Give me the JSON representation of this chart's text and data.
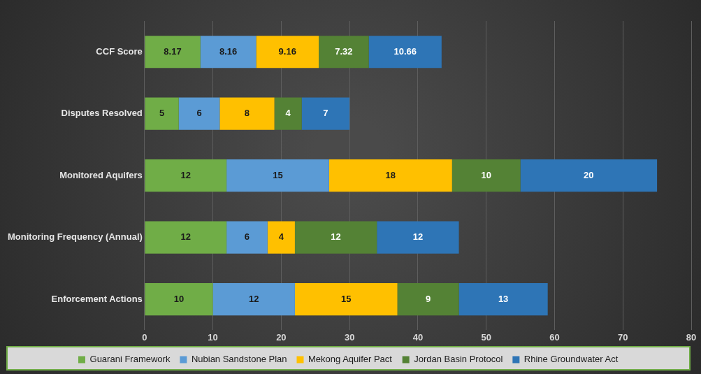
{
  "chart_data": {
    "type": "bar",
    "orientation": "horizontal",
    "stacked": true,
    "categories": [
      "CCF Score",
      "Disputes Resolved",
      "Monitored Aquifers",
      "Monitoring Frequency (Annual)",
      "Enforcement Actions"
    ],
    "series": [
      {
        "name": "Guarani Framework",
        "color": "#70ad47",
        "values": [
          8.17,
          5,
          12,
          12,
          10
        ]
      },
      {
        "name": "Nubian Sandstone Plan",
        "color": "#5b9bd5",
        "values": [
          8.16,
          6,
          15,
          6,
          12
        ]
      },
      {
        "name": "Mekong Aquifer Pact",
        "color": "#ffc000",
        "values": [
          9.16,
          8,
          18,
          4,
          15
        ]
      },
      {
        "name": "Jordan Basin Protocol",
        "color": "#548235",
        "values": [
          7.32,
          4,
          10,
          12,
          9
        ]
      },
      {
        "name": "Rhine Groundwater Act",
        "color": "#2e75b6",
        "values": [
          10.66,
          7,
          20,
          12,
          13
        ]
      }
    ],
    "xlim": [
      0,
      80
    ],
    "xticks": [
      0,
      10,
      20,
      30,
      40,
      50,
      60,
      70,
      80
    ],
    "grid": "x",
    "legend": "bottom",
    "data_labels": true
  }
}
